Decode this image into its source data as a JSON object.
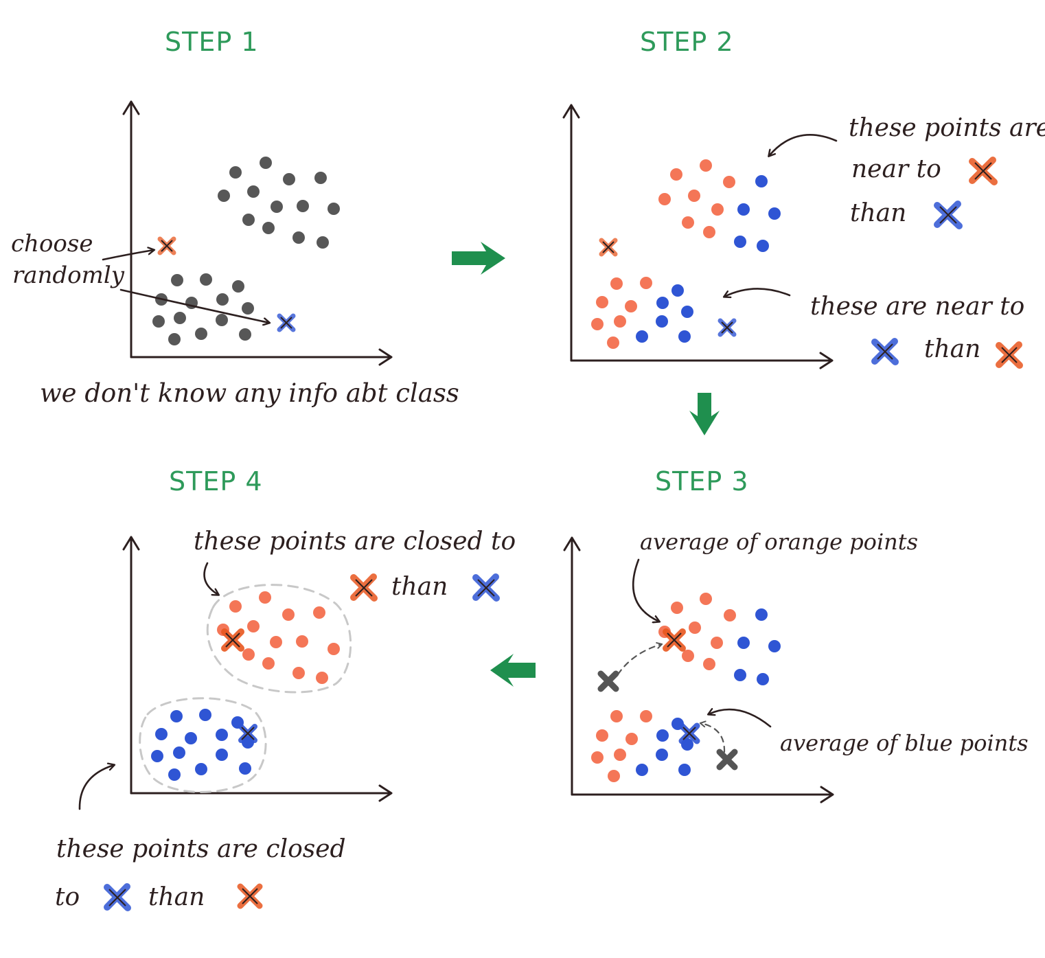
{
  "colors": {
    "title": "#2e9a5a",
    "ink": "#2c1f1f",
    "gray_point": "#575757",
    "orange_point": "#f47657",
    "blue_point": "#2f55d4",
    "orange_centroid": "#e8571f",
    "blue_centroid": "#2f55d4",
    "gray_centroid": "#555555",
    "green_arrow": "#1f8f4e",
    "cluster_outline": "#c8c8c8"
  },
  "step1": {
    "title": "STEP 1",
    "label_choose": "choose",
    "label_randomly": "randomly",
    "caption": "we don't know any info abt class"
  },
  "step2": {
    "title": "STEP 2",
    "note_top_line1": "these points are",
    "note_top_line2": "near to",
    "note_top_line3": "than",
    "note_bottom_line1": "these are near to",
    "note_bottom_line2": "than"
  },
  "step3": {
    "title": "STEP 3",
    "note_orange": "average of orange points",
    "note_blue": "average of blue points"
  },
  "step4": {
    "title": "STEP 4",
    "note_top_line1": "these points are closed to",
    "note_top_line2": "than",
    "note_bottom_line1": "these points are closed",
    "note_bottom_line2": "to",
    "note_bottom_line3": "than"
  },
  "icons": [
    "orange-x-icon",
    "blue-x-icon",
    "gray-x-icon",
    "right-arrow-icon",
    "down-arrow-icon",
    "left-arrow-icon"
  ]
}
